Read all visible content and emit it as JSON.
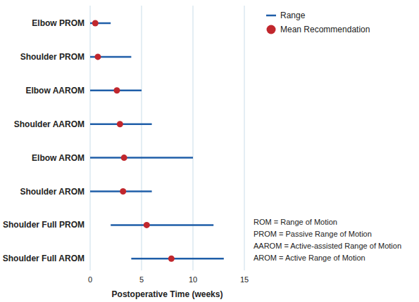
{
  "chart_data": {
    "type": "range",
    "orientation": "horizontal",
    "categories": [
      "Elbow PROM",
      "Shoulder PROM",
      "Elbow AAROM",
      "Shoulder AAROM",
      "Elbow AROM",
      "Shoulder AROM",
      "Shoulder Full PROM",
      "Shoulder Full AROM"
    ],
    "series": [
      {
        "name": "Range",
        "type": "range",
        "color": "#1f5ea8",
        "low": [
          0,
          0,
          0,
          0,
          0,
          0,
          2,
          4
        ],
        "high": [
          2,
          4,
          5,
          6,
          10,
          6,
          12,
          13
        ]
      },
      {
        "name": "Mean Recommendation",
        "type": "scatter",
        "marker": "circle",
        "color": "#c1272d",
        "values": [
          0.5,
          0.75,
          2.6,
          2.9,
          3.3,
          3.2,
          5.5,
          7.9
        ]
      }
    ],
    "xlabel": "Postoperative Time (weeks)",
    "xlim": [
      0,
      15
    ],
    "xticks": [
      0,
      5,
      10,
      15
    ],
    "grid": true,
    "legend": "upper right",
    "annotations": [
      "ROM = Range of Motion",
      "PROM = Passive Range of Motion",
      "AAROM = Active-assisted Range of Motion",
      "AROM = Active Range of Motion"
    ]
  }
}
